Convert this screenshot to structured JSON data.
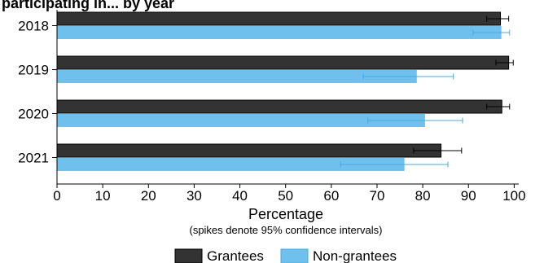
{
  "chart_data": {
    "type": "bar",
    "orientation": "horizontal",
    "title": "participating in... by year",
    "categories": [
      "2018",
      "2019",
      "2020",
      "2021"
    ],
    "series": [
      {
        "name": "Grantees",
        "color": "#333333",
        "values": [
          97.0,
          98.8,
          97.3,
          84.0
        ],
        "ci_low": [
          94.0,
          96.0,
          94.0,
          78.0
        ],
        "ci_high": [
          98.8,
          99.8,
          99.0,
          88.5
        ]
      },
      {
        "name": "Non-grantees",
        "color": "#70c0ee",
        "values": [
          97.2,
          78.7,
          80.5,
          76.0
        ],
        "ci_low": [
          91.0,
          67.0,
          68.0,
          62.0
        ],
        "ci_high": [
          99.0,
          86.7,
          88.7,
          85.5
        ]
      }
    ],
    "xlabel": "Percentage",
    "note": "(spikes denote 95% confidence intervals)",
    "xlim": [
      0,
      101
    ],
    "xticks": [
      "0",
      "10",
      "20",
      "30",
      "40",
      "50",
      "60",
      "70",
      "80",
      "90",
      "100"
    ],
    "grid": false,
    "legend_position": "bottom"
  }
}
